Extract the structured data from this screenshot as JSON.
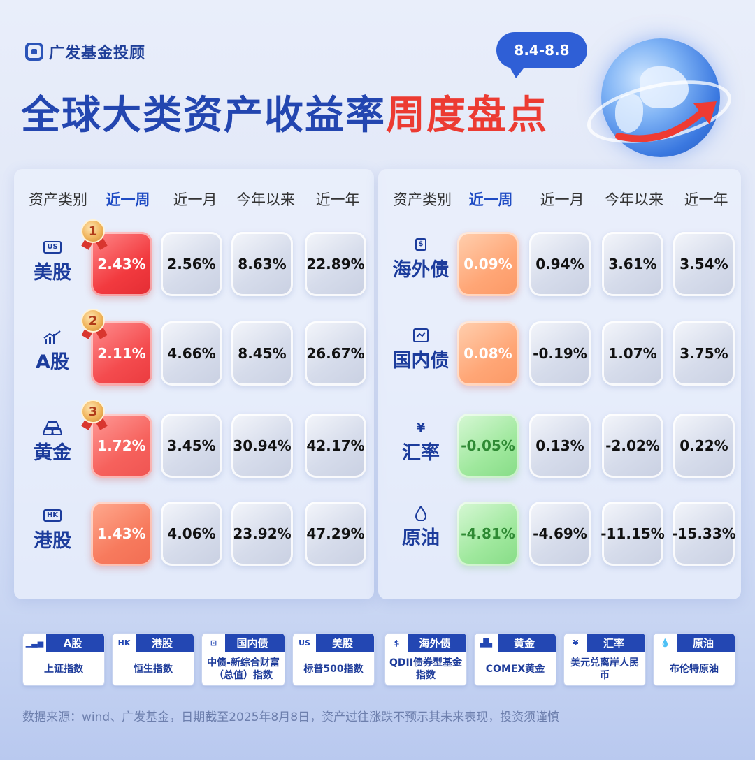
{
  "brand": {
    "name": "广发基金投顾"
  },
  "date_range": "8.4-8.8",
  "title": {
    "part1": "全球大类资产收益率",
    "part2": "周度盘点"
  },
  "headers": [
    "资产类别",
    "近一周",
    "近一月",
    "今年以来",
    "近一年"
  ],
  "left_rows": [
    {
      "icon": "US",
      "name": "美股",
      "rank": "1",
      "week": "2.43%",
      "month": "2.56%",
      "ytd": "8.63%",
      "year": "22.89%"
    },
    {
      "icon": "chart",
      "name": "A股",
      "rank": "2",
      "week": "2.11%",
      "month": "4.66%",
      "ytd": "8.45%",
      "year": "26.67%"
    },
    {
      "icon": "gold",
      "name": "黄金",
      "rank": "3",
      "week": "1.72%",
      "month": "3.45%",
      "ytd": "30.94%",
      "year": "42.17%"
    },
    {
      "icon": "HK",
      "name": "港股",
      "rank": "",
      "week": "1.43%",
      "month": "4.06%",
      "ytd": "23.92%",
      "year": "47.29%"
    }
  ],
  "right_rows": [
    {
      "icon": "$",
      "name": "海外债",
      "week": "0.09%",
      "month": "0.94%",
      "ytd": "3.61%",
      "year": "3.54%"
    },
    {
      "icon": "bond",
      "name": "国内债",
      "week": "0.08%",
      "month": "-0.19%",
      "ytd": "1.07%",
      "year": "3.75%"
    },
    {
      "icon": "¥",
      "name": "汇率",
      "week": "-0.05%",
      "month": "0.13%",
      "ytd": "-2.02%",
      "year": "0.22%"
    },
    {
      "icon": "drop",
      "name": "原油",
      "week": "-4.81%",
      "month": "-4.69%",
      "ytd": "-11.15%",
      "year": "-15.33%"
    }
  ],
  "legend": [
    {
      "icon": "chart",
      "name": "A股",
      "desc": "上证指数"
    },
    {
      "icon": "HK",
      "name": "港股",
      "desc": "恒生指数"
    },
    {
      "icon": "bond",
      "name": "国内债",
      "desc": "中债-新综合财富（总值）指数"
    },
    {
      "icon": "US",
      "name": "美股",
      "desc": "标普500指数"
    },
    {
      "icon": "$",
      "name": "海外债",
      "desc": "QDII债券型基金指数"
    },
    {
      "icon": "gold",
      "name": "黄金",
      "desc": "COMEX黄金"
    },
    {
      "icon": "¥",
      "name": "汇率",
      "desc": "美元兑离岸人民币"
    },
    {
      "icon": "drop",
      "name": "原油",
      "desc": "布伦特原油"
    }
  ],
  "source": "数据来源：wind、广发基金，日期截至2025年8月8日，资产过往涨跌不预示其未来表现，投资须谨慎",
  "colors": {
    "brand_blue": "#2346b0",
    "accent_red": "#ec3b32",
    "up_red": "#f23a3f",
    "down_green": "#86dc86",
    "flat_orange": "#fb9865"
  }
}
